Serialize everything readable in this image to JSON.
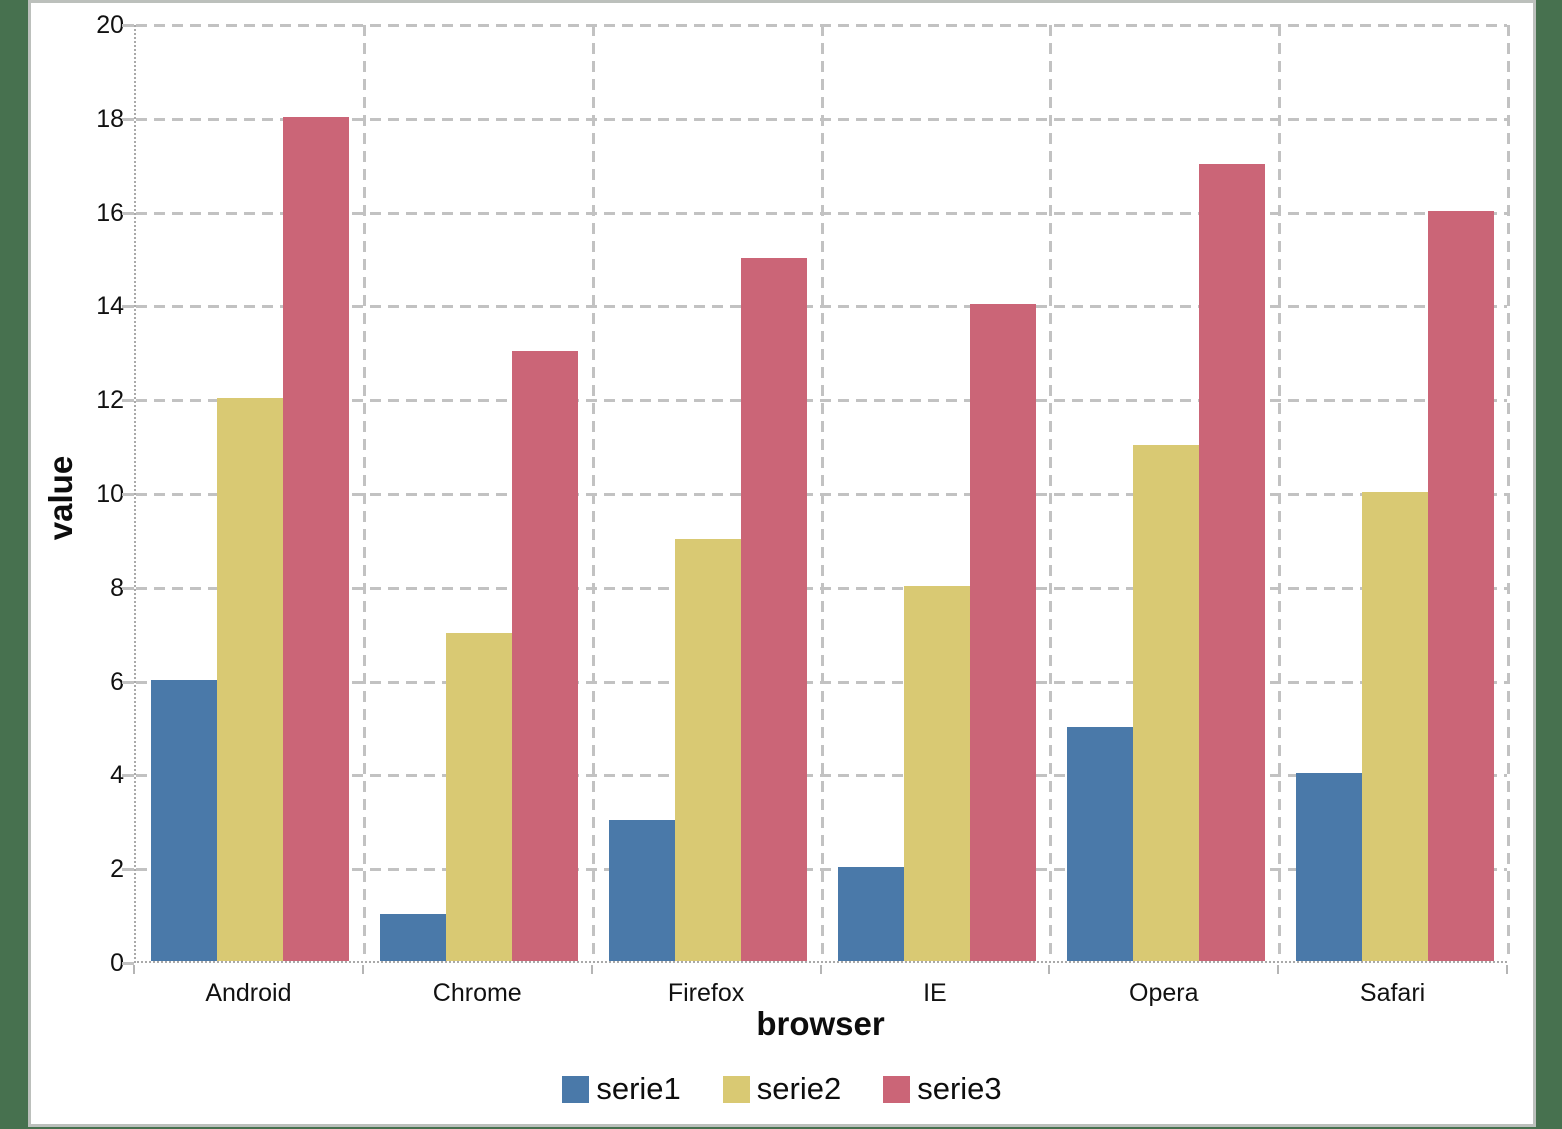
{
  "chart_data": {
    "type": "bar",
    "title": "",
    "xlabel": "browser",
    "ylabel": "value",
    "categories": [
      "Android",
      "Chrome",
      "Firefox",
      "IE",
      "Opera",
      "Safari"
    ],
    "series": [
      {
        "name": "serie1",
        "color": "#4A79A9",
        "values": [
          6,
          1,
          3,
          2,
          5,
          4
        ]
      },
      {
        "name": "serie2",
        "color": "#D9C973",
        "values": [
          12,
          7,
          9,
          8,
          11,
          10
        ]
      },
      {
        "name": "serie3",
        "color": "#CB6577",
        "values": [
          18,
          13,
          15,
          14,
          17,
          16
        ]
      }
    ],
    "ylim": [
      0,
      20
    ],
    "ytick_step": 2,
    "ytick_labels": [
      "0",
      "2",
      "4",
      "6",
      "8",
      "10",
      "12",
      "14",
      "16",
      "18",
      "20"
    ],
    "grid": "dashed",
    "legend_position": "bottom-center",
    "legend_labels": [
      "serie1",
      "serie2",
      "serie3"
    ]
  },
  "colors": {
    "page_background": "#47714F",
    "panel_background": "#FFFFFF",
    "panel_border": "#BCC0BC",
    "gridline": "#C2C2C2",
    "axis_line": "#A9A9A9",
    "text": "#111111"
  }
}
